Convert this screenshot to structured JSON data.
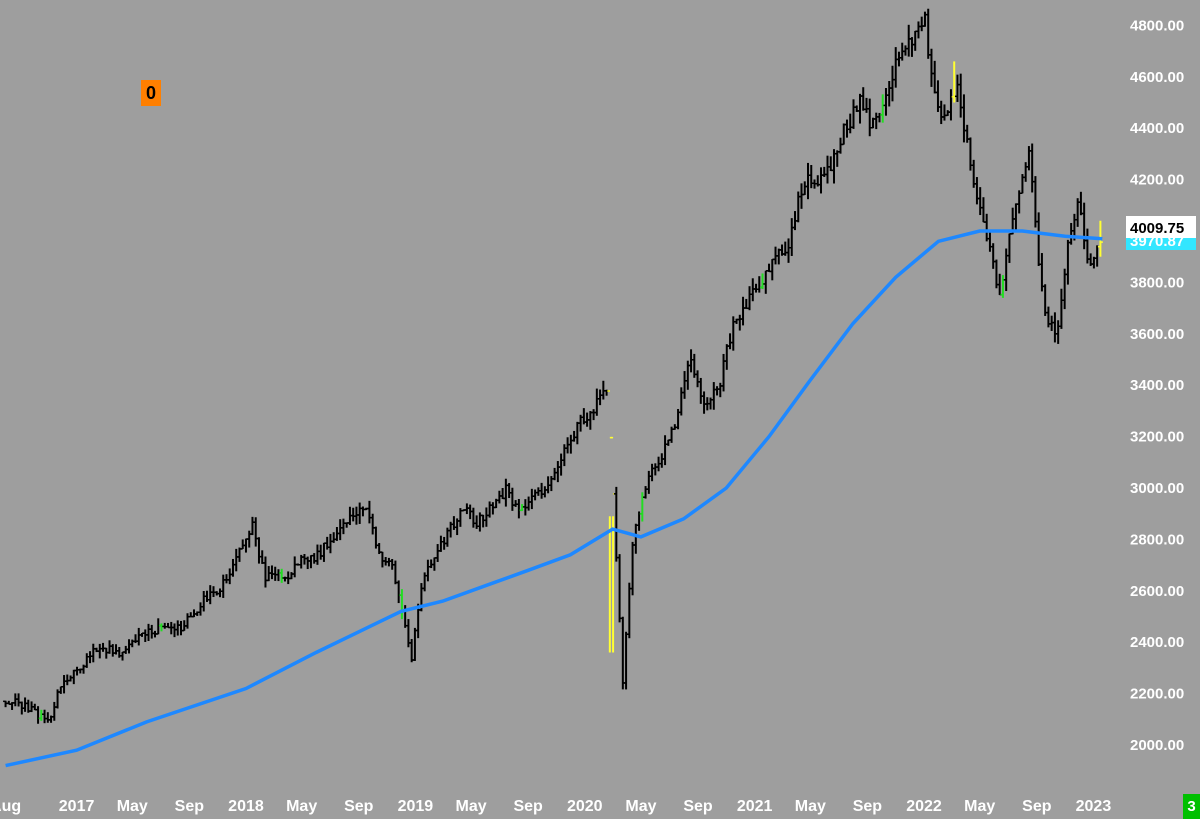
{
  "counter_badge": "0",
  "corner_badge": "3",
  "colors": {
    "background": "#9e9e9e",
    "bar": "#000000",
    "bar_up_highlight": "#22dd22",
    "bar_wide_range": "#ffff33",
    "moving_average": "#1e88ff",
    "price_box": "#ffffff",
    "ma_box": "#33e6ff",
    "axis_text": "#ffffff"
  },
  "chart_data": {
    "type": "line",
    "series": [
      {
        "kind": "ohlc_weekly_bars",
        "x": [
          "2016-08-01",
          "2016-09-01",
          "2016-10-01",
          "2016-11-01",
          "2016-12-01",
          "2017-01-01",
          "2017-02-01",
          "2017-03-01",
          "2017-04-01",
          "2017-05-01",
          "2017-06-01",
          "2017-07-01",
          "2017-08-01",
          "2017-09-01",
          "2017-10-01",
          "2017-11-01",
          "2017-12-01",
          "2018-01-15",
          "2018-02-10",
          "2018-03-01",
          "2018-04-01",
          "2018-05-01",
          "2018-06-01",
          "2018-07-01",
          "2018-08-01",
          "2018-09-15",
          "2018-10-15",
          "2018-11-15",
          "2018-12-24",
          "2019-01-15",
          "2019-02-15",
          "2019-03-15",
          "2019-04-15",
          "2019-05-15",
          "2019-06-15",
          "2019-07-15",
          "2019-08-15",
          "2019-09-15",
          "2019-10-15",
          "2019-11-15",
          "2019-12-15",
          "2020-01-15",
          "2020-02-19",
          "2020-03-23",
          "2020-04-15",
          "2020-05-15",
          "2020-06-15",
          "2020-07-15",
          "2020-08-15",
          "2020-09-15",
          "2020-10-15",
          "2020-11-15",
          "2020-12-15",
          "2021-01-15",
          "2021-02-15",
          "2021-03-15",
          "2021-04-15",
          "2021-05-15",
          "2021-06-15",
          "2021-07-15",
          "2021-08-15",
          "2021-09-15",
          "2021-10-15",
          "2021-11-15",
          "2022-01-03",
          "2022-01-25",
          "2022-02-15",
          "2022-03-15",
          "2022-04-15",
          "2022-05-15",
          "2022-06-15",
          "2022-07-15",
          "2022-08-15",
          "2022-09-15",
          "2022-10-13",
          "2022-11-15",
          "2022-12-01",
          "2022-12-20",
          "2023-01-20"
        ],
        "y": [
          2170,
          2160,
          2130,
          2090,
          2250,
          2280,
          2360,
          2380,
          2350,
          2400,
          2430,
          2460,
          2440,
          2490,
          2560,
          2600,
          2680,
          2860,
          2650,
          2660,
          2660,
          2720,
          2730,
          2800,
          2870,
          2930,
          2750,
          2680,
          2340,
          2620,
          2760,
          2830,
          2920,
          2860,
          2940,
          2990,
          2900,
          2970,
          3010,
          3140,
          3240,
          3300,
          3380,
          2240,
          2830,
          3040,
          3120,
          3260,
          3500,
          3330,
          3380,
          3640,
          3720,
          3800,
          3900,
          3950,
          4180,
          4200,
          4260,
          4400,
          4500,
          4400,
          4570,
          4700,
          4810,
          4500,
          4420,
          4580,
          4200,
          4000,
          3740,
          4100,
          4300,
          3700,
          3580,
          4040,
          4100,
          3860,
          3970
        ]
      },
      {
        "name": "",
        "kind": "moving_average",
        "x": [
          "2016-08-01",
          "2017-01-01",
          "2017-06-01",
          "2018-01-01",
          "2018-06-01",
          "2018-12-01",
          "2019-03-01",
          "2019-06-01",
          "2019-09-01",
          "2019-12-01",
          "2020-03-01",
          "2020-05-01",
          "2020-08-01",
          "2020-11-01",
          "2021-02-01",
          "2021-05-01",
          "2021-08-01",
          "2021-11-01",
          "2022-02-01",
          "2022-05-01",
          "2022-08-01",
          "2022-11-01",
          "2023-01-20"
        ],
        "y": [
          1920,
          1980,
          2090,
          2220,
          2360,
          2520,
          2560,
          2620,
          2680,
          2740,
          2840,
          2810,
          2880,
          3000,
          3200,
          3420,
          3640,
          3820,
          3960,
          4000,
          4000,
          3980,
          3970
        ]
      }
    ],
    "last_price_label": "4009.75",
    "ma_value_label": "3970.87",
    "ylim": [
      1860,
      4860
    ],
    "yticks": [
      "2000.00",
      "2200.00",
      "2400.00",
      "2600.00",
      "2800.00",
      "3000.00",
      "3200.00",
      "3400.00",
      "3600.00",
      "3800.00",
      "4000.00",
      "4200.00",
      "4400.00",
      "4600.00",
      "4800.00"
    ],
    "xlim": [
      "2016-07-20",
      "2023-02-10"
    ],
    "xticks": [
      {
        "label": "Aug",
        "date": "2016-08-01"
      },
      {
        "label": "2017",
        "date": "2017-01-01"
      },
      {
        "label": "May",
        "date": "2017-05-01"
      },
      {
        "label": "Sep",
        "date": "2017-09-01"
      },
      {
        "label": "2018",
        "date": "2018-01-01"
      },
      {
        "label": "May",
        "date": "2018-05-01"
      },
      {
        "label": "Sep",
        "date": "2018-09-01"
      },
      {
        "label": "2019",
        "date": "2019-01-01"
      },
      {
        "label": "May",
        "date": "2019-05-01"
      },
      {
        "label": "Sep",
        "date": "2019-09-01"
      },
      {
        "label": "2020",
        "date": "2020-01-01"
      },
      {
        "label": "May",
        "date": "2020-05-01"
      },
      {
        "label": "Sep",
        "date": "2020-09-01"
      },
      {
        "label": "2021",
        "date": "2021-01-01"
      },
      {
        "label": "May",
        "date": "2021-05-01"
      },
      {
        "label": "Sep",
        "date": "2021-09-01"
      },
      {
        "label": "2022",
        "date": "2022-01-01"
      },
      {
        "label": "May",
        "date": "2022-05-01"
      },
      {
        "label": "Sep",
        "date": "2022-09-01"
      },
      {
        "label": "2023",
        "date": "2023-01-01"
      }
    ],
    "grid": false
  }
}
